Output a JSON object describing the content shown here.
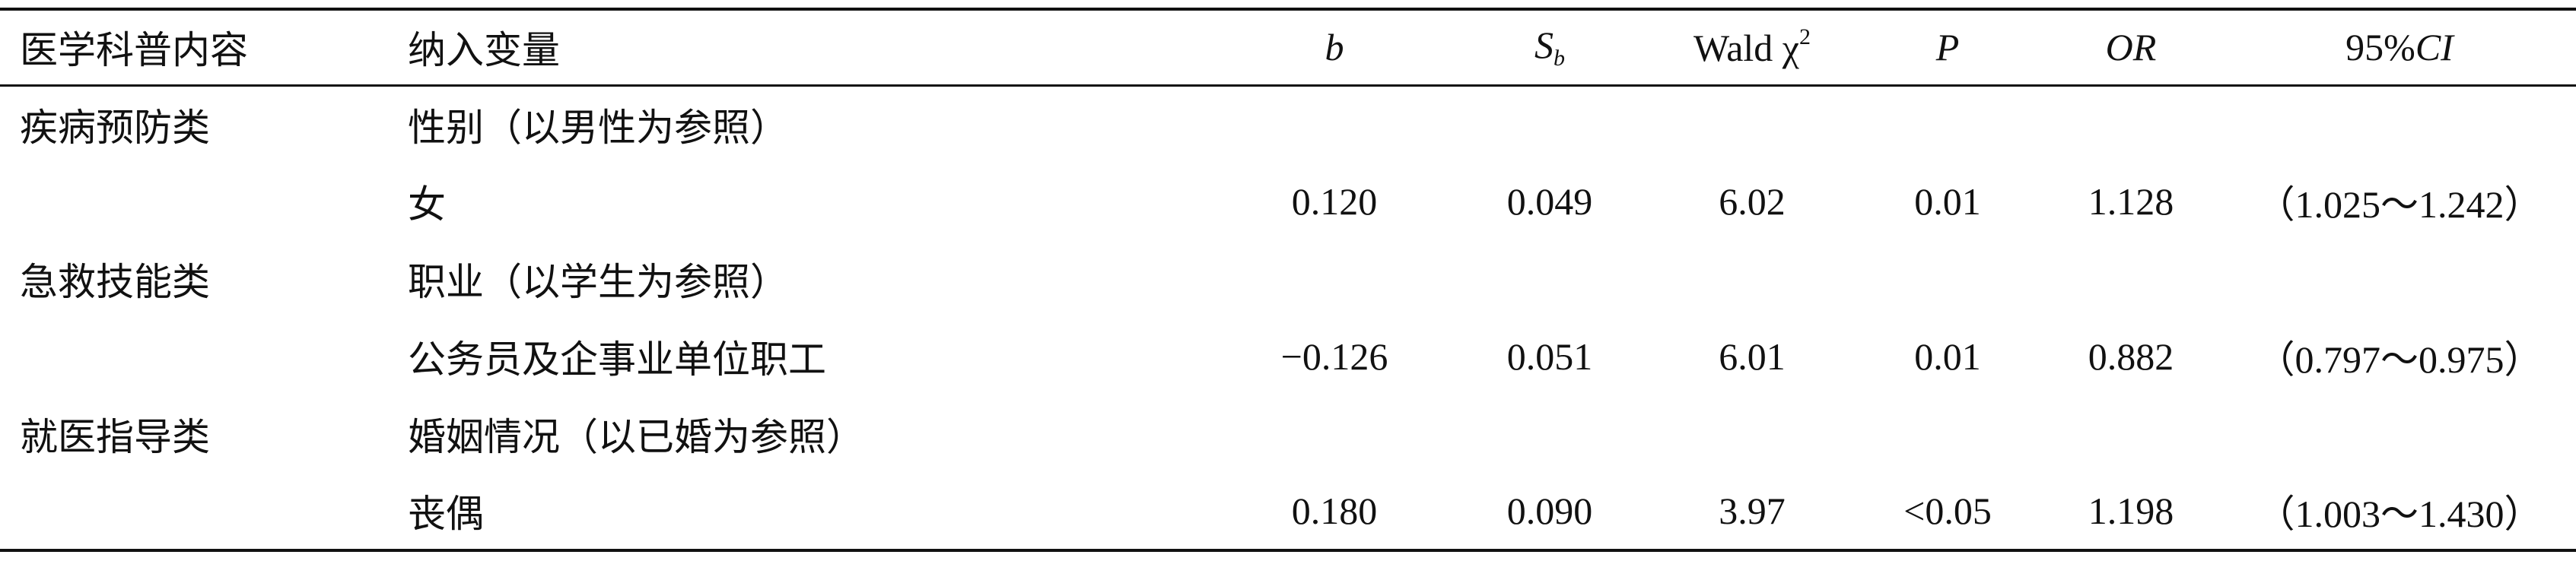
{
  "table": {
    "header": [
      "医学科普内容",
      "纳入变量",
      "b",
      [
        "S",
        "b"
      ],
      [
        "Wald χ",
        "2"
      ],
      "P",
      "OR",
      [
        "95%",
        "CI"
      ]
    ],
    "rows": [
      {
        "category": "疾病预防类",
        "variable": "性别（以男性为参照）"
      },
      {
        "variable": "女",
        "b": "0.120",
        "sb": "0.049",
        "wald": "6.02",
        "p": "0.01",
        "or": "1.128",
        "ci": "（1.025～1.242）"
      },
      {
        "category": "急救技能类",
        "variable": "职业（以学生为参照）"
      },
      {
        "variable": "公务员及企事业单位职工",
        "b": "−0.126",
        "sb": "0.051",
        "wald": "6.01",
        "p": "0.01",
        "or": "0.882",
        "ci": "（0.797～0.975）"
      },
      {
        "category": "就医指导类",
        "variable": "婚姻情况（以已婚为参照）"
      },
      {
        "variable": "丧偶",
        "b": "0.180",
        "sb": "0.090",
        "wald": "3.97",
        "p": "<0.05",
        "or": "1.198",
        "ci": "（1.003～1.430）"
      }
    ]
  }
}
